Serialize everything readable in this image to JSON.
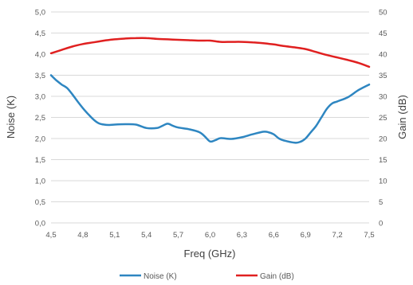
{
  "chart_data": {
    "type": "line",
    "xlabel": "Freq (GHz)",
    "ylabel_left": "Noise (K)",
    "ylabel_right": "Gain (dB)",
    "x_ticks": [
      "4,5",
      "4,8",
      "5,1",
      "5,4",
      "5,7",
      "6,0",
      "6,3",
      "6,6",
      "6,9",
      "7,2",
      "7,5"
    ],
    "y_left_ticks": [
      "0,0",
      "0,5",
      "1,0",
      "1,5",
      "2,0",
      "2,5",
      "3,0",
      "3,5",
      "4,0",
      "4,5",
      "5,0"
    ],
    "y_right_ticks": [
      "0",
      "5",
      "10",
      "15",
      "20",
      "25",
      "30",
      "35",
      "40",
      "45",
      "50"
    ],
    "xlim": [
      4.5,
      7.5
    ],
    "ylim_left": [
      0,
      5
    ],
    "ylim_right": [
      0,
      50
    ],
    "grid": "horizontal",
    "legend_position": "bottom",
    "series": [
      {
        "name": "Noise (K)",
        "axis": "left",
        "color": "#2e86c1",
        "x": [
          4.5,
          4.55,
          4.6,
          4.65,
          4.7,
          4.75,
          4.8,
          4.85,
          4.9,
          4.95,
          5.0,
          5.05,
          5.1,
          5.2,
          5.3,
          5.4,
          5.5,
          5.55,
          5.6,
          5.65,
          5.7,
          5.8,
          5.9,
          5.95,
          6.0,
          6.05,
          6.1,
          6.2,
          6.3,
          6.4,
          6.5,
          6.55,
          6.6,
          6.65,
          6.7,
          6.8,
          6.85,
          6.9,
          6.95,
          7.0,
          7.05,
          7.1,
          7.15,
          7.2,
          7.3,
          7.4,
          7.5
        ],
        "values": [
          3.5,
          3.38,
          3.28,
          3.2,
          3.05,
          2.88,
          2.72,
          2.58,
          2.45,
          2.36,
          2.33,
          2.32,
          2.33,
          2.34,
          2.33,
          2.25,
          2.25,
          2.3,
          2.35,
          2.3,
          2.26,
          2.22,
          2.15,
          2.05,
          1.93,
          1.96,
          2.01,
          1.99,
          2.03,
          2.1,
          2.16,
          2.15,
          2.1,
          2.0,
          1.95,
          1.9,
          1.92,
          2.0,
          2.15,
          2.3,
          2.5,
          2.7,
          2.83,
          2.88,
          2.98,
          3.15,
          3.28
        ]
      },
      {
        "name": "Gain (dB)",
        "axis": "right",
        "color": "#e02020",
        "x": [
          4.5,
          4.6,
          4.7,
          4.8,
          4.9,
          5.0,
          5.1,
          5.2,
          5.3,
          5.4,
          5.5,
          5.6,
          5.7,
          5.8,
          5.9,
          6.0,
          6.1,
          6.2,
          6.3,
          6.4,
          6.5,
          6.6,
          6.7,
          6.8,
          6.9,
          7.0,
          7.1,
          7.2,
          7.3,
          7.4,
          7.5
        ],
        "values": [
          40.2,
          41.0,
          41.8,
          42.4,
          42.8,
          43.2,
          43.5,
          43.7,
          43.8,
          43.8,
          43.6,
          43.5,
          43.4,
          43.3,
          43.2,
          43.2,
          42.9,
          42.9,
          42.9,
          42.8,
          42.6,
          42.3,
          41.9,
          41.6,
          41.2,
          40.5,
          39.8,
          39.2,
          38.6,
          37.9,
          37.0
        ]
      }
    ]
  }
}
